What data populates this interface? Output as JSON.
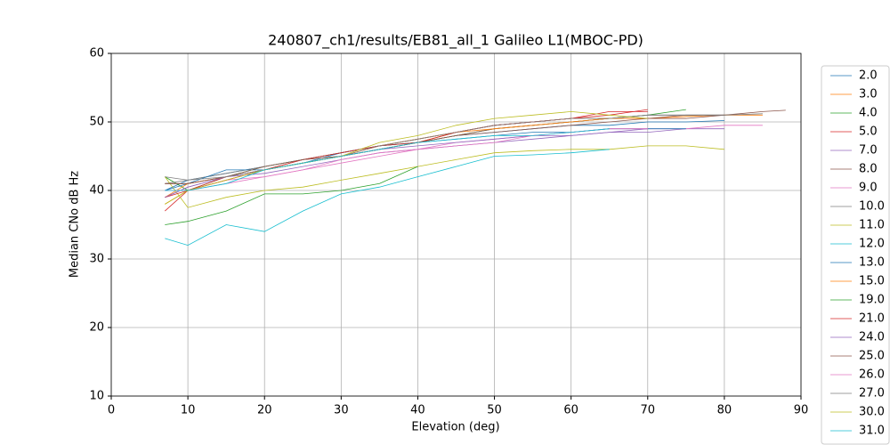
{
  "chart_data": {
    "type": "line",
    "title": "240807_ch1/results/EB81_all_1 Galileo L1(MBOC-PD)",
    "x_label": "Elevation (deg)",
    "y_label": "Median CNo dB Hz",
    "xlim": [
      0,
      90
    ],
    "ylim": [
      10,
      60
    ],
    "xticks": [
      0,
      10,
      20,
      30,
      40,
      50,
      60,
      70,
      80,
      90
    ],
    "yticks": [
      10,
      20,
      30,
      40,
      50,
      60
    ],
    "grid": true,
    "legend": "outside right",
    "x": [
      7,
      10,
      15,
      20,
      25,
      30,
      35,
      40,
      45,
      50,
      55,
      60,
      65,
      70,
      75,
      80,
      85,
      88
    ],
    "series": [
      {
        "name": "2.0",
        "color": "#1f77b4",
        "values": [
          40,
          41.5,
          42.5,
          43.5,
          44.5,
          45.5,
          46.5,
          47,
          48,
          48.5,
          49,
          49.5,
          49.5,
          50,
          50,
          50.2,
          null,
          null
        ]
      },
      {
        "name": "3.0",
        "color": "#ff7f0e",
        "values": [
          38,
          40,
          41.5,
          43,
          44,
          45,
          46,
          47,
          48.5,
          49.5,
          50,
          50.5,
          50.5,
          50.5,
          50.8,
          51,
          51,
          null
        ]
      },
      {
        "name": "4.0",
        "color": "#2ca02c",
        "values": [
          42,
          40,
          42,
          43.5,
          44.5,
          45.5,
          46.5,
          47,
          48,
          49,
          49.5,
          50,
          50.5,
          51,
          51.8,
          null,
          null,
          null
        ]
      },
      {
        "name": "5.0",
        "color": "#d62728",
        "values": [
          37,
          40,
          42,
          43,
          44,
          45,
          46.5,
          47.5,
          48.5,
          49.5,
          50,
          50.5,
          51.5,
          51.5,
          null,
          null,
          null,
          null
        ]
      },
      {
        "name": "7.0",
        "color": "#9467bd",
        "values": [
          39,
          40.5,
          42,
          42.5,
          43.5,
          44.5,
          45.5,
          46,
          46.5,
          47,
          47.5,
          48,
          48.5,
          48.5,
          49,
          49,
          null,
          null
        ]
      },
      {
        "name": "8.0",
        "color": "#8c564b",
        "values": [
          41,
          41,
          42,
          43,
          44.5,
          45,
          46,
          47,
          48,
          49,
          49.5,
          50,
          50.5,
          50.5,
          51,
          51,
          51.5,
          51.7
        ]
      },
      {
        "name": "9.0",
        "color": "#e377c2",
        "values": [
          40,
          40,
          41.5,
          42,
          43,
          44,
          45,
          46,
          47,
          47.5,
          48,
          48.5,
          49,
          49,
          49,
          49.5,
          49.5,
          null
        ]
      },
      {
        "name": "10.0",
        "color": "#7f7f7f",
        "values": [
          41,
          41.5,
          42.5,
          43.5,
          44.5,
          45.5,
          46.5,
          47.5,
          48.5,
          49.5,
          50,
          50.5,
          50.5,
          51,
          51,
          51,
          51.2,
          null
        ]
      },
      {
        "name": "11.0",
        "color": "#bcbd22",
        "values": [
          42,
          37.5,
          39,
          40,
          40.5,
          41.5,
          42.5,
          43.5,
          44.5,
          45.5,
          45.8,
          46,
          46,
          46.5,
          46.5,
          46,
          null,
          null
        ]
      },
      {
        "name": "12.0",
        "color": "#17becf",
        "values": [
          33,
          32,
          35,
          34,
          37,
          39.5,
          40.5,
          42,
          43.5,
          45,
          45.2,
          45.5,
          46,
          null,
          null,
          null,
          null,
          null
        ]
      },
      {
        "name": "13.0",
        "color": "#1f77b4",
        "values": [
          40,
          41,
          43,
          43,
          44,
          45.5,
          46.5,
          47,
          47.5,
          48,
          48.5,
          48.5,
          49,
          49,
          49,
          null,
          null,
          null
        ]
      },
      {
        "name": "15.0",
        "color": "#ff7f0e",
        "values": [
          39,
          41,
          42,
          43,
          44,
          45,
          46.5,
          47.5,
          48.5,
          49,
          49.5,
          50,
          50.5,
          50.5,
          50.5,
          null,
          null,
          null
        ]
      },
      {
        "name": "19.0",
        "color": "#2ca02c",
        "values": [
          35,
          35.5,
          37,
          39.5,
          39.5,
          40,
          41,
          43.5,
          null,
          null,
          null,
          null,
          null,
          null,
          null,
          null,
          null,
          null
        ]
      },
      {
        "name": "21.0",
        "color": "#d62728",
        "values": [
          39,
          40,
          41.5,
          43,
          44.5,
          45.5,
          46.5,
          47,
          48.5,
          49.5,
          50,
          50.5,
          51,
          51.8,
          null,
          null,
          null,
          null
        ]
      },
      {
        "name": "24.0",
        "color": "#9467bd",
        "values": [
          39,
          40.5,
          42,
          43,
          44,
          45,
          46,
          46.5,
          47,
          47.5,
          48,
          48,
          48.5,
          49,
          null,
          null,
          null,
          null
        ]
      },
      {
        "name": "25.0",
        "color": "#8c564b",
        "values": [
          41,
          41,
          42,
          43.5,
          44.5,
          45,
          46,
          47,
          48,
          48.5,
          49,
          49.5,
          50,
          50.5,
          50.5,
          51,
          null,
          null
        ]
      },
      {
        "name": "26.0",
        "color": "#e377c2",
        "values": [
          40,
          40,
          41,
          42,
          43,
          44.5,
          45.5,
          46,
          46.5,
          47,
          48,
          48.5,
          49,
          49,
          null,
          null,
          null,
          null
        ]
      },
      {
        "name": "27.0",
        "color": "#7f7f7f",
        "values": [
          42,
          41.5,
          42,
          43,
          44,
          45,
          46.5,
          47.5,
          48.5,
          49.5,
          50,
          50.5,
          50.5,
          51,
          51,
          51,
          null,
          null
        ]
      },
      {
        "name": "30.0",
        "color": "#bcbd22",
        "values": [
          38,
          40,
          41.5,
          43,
          44,
          45,
          47,
          48,
          49.5,
          50.5,
          51,
          51.5,
          51,
          50.5,
          null,
          null,
          null,
          null
        ]
      },
      {
        "name": "31.0",
        "color": "#17becf",
        "values": [
          40,
          40,
          41,
          43,
          44,
          45,
          46,
          47,
          47.5,
          48,
          48,
          48.5,
          49,
          null,
          null,
          null,
          null,
          null
        ]
      }
    ]
  }
}
